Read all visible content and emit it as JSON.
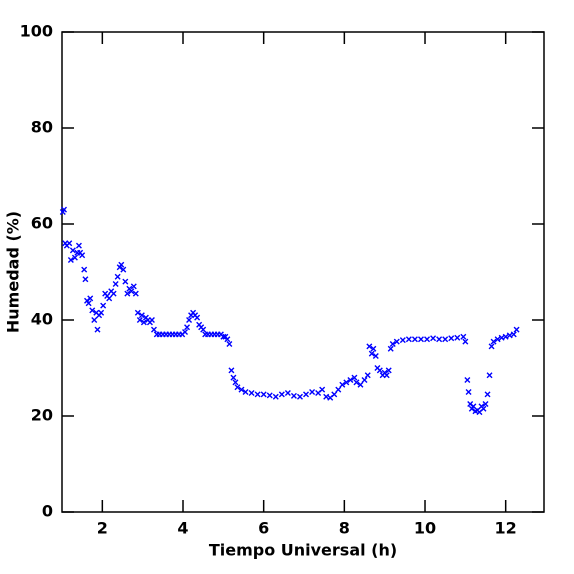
{
  "chart_data": {
    "type": "scatter",
    "xlabel": "Tiempo Universal (h)",
    "ylabel": "Humedad (%)",
    "xlim": [
      1,
      12.95
    ],
    "ylim": [
      0,
      100
    ],
    "xticks": [
      2,
      4,
      6,
      8,
      10,
      12
    ],
    "yticks": [
      0,
      20,
      40,
      60,
      80,
      100
    ],
    "color": "#0000ff",
    "x": [
      1.02,
      1.05,
      1.08,
      1.12,
      1.18,
      1.22,
      1.27,
      1.32,
      1.38,
      1.42,
      1.45,
      1.5,
      1.55,
      1.58,
      1.62,
      1.66,
      1.7,
      1.75,
      1.8,
      1.85,
      1.88,
      1.92,
      1.97,
      2.02,
      2.07,
      2.12,
      2.17,
      2.22,
      2.28,
      2.33,
      2.38,
      2.43,
      2.47,
      2.52,
      2.57,
      2.62,
      2.67,
      2.72,
      2.78,
      2.83,
      2.88,
      2.93,
      2.98,
      3.03,
      3.08,
      3.13,
      3.18,
      3.23,
      3.28,
      3.35,
      3.42,
      3.5,
      3.58,
      3.66,
      3.74,
      3.82,
      3.9,
      3.98,
      4.05,
      4.1,
      4.15,
      4.2,
      4.25,
      4.3,
      4.35,
      4.4,
      4.45,
      4.5,
      4.55,
      4.62,
      4.7,
      4.78,
      4.86,
      4.94,
      5.0,
      5.05,
      5.1,
      5.15,
      5.2,
      5.25,
      5.3,
      5.35,
      5.45,
      5.55,
      5.7,
      5.85,
      6.0,
      6.15,
      6.3,
      6.45,
      6.6,
      6.75,
      6.9,
      7.05,
      7.2,
      7.35,
      7.45,
      7.55,
      7.65,
      7.75,
      7.85,
      7.95,
      8.05,
      8.15,
      8.25,
      8.3,
      8.4,
      8.5,
      8.58,
      8.62,
      8.68,
      8.72,
      8.78,
      8.82,
      8.88,
      8.95,
      9.0,
      9.05,
      9.1,
      9.15,
      9.2,
      9.3,
      9.45,
      9.6,
      9.75,
      9.9,
      10.05,
      10.2,
      10.35,
      10.5,
      10.65,
      10.8,
      10.95,
      11.0,
      11.05,
      11.08,
      11.12,
      11.16,
      11.2,
      11.25,
      11.3,
      11.35,
      11.4,
      11.45,
      11.5,
      11.55,
      11.6,
      11.65,
      11.7,
      11.8,
      11.9,
      12.0,
      12.1,
      12.2,
      12.27
    ],
    "values": [
      62.5,
      63,
      56,
      55.5,
      56,
      52.5,
      54.5,
      53,
      54,
      55.5,
      54,
      53.5,
      50.5,
      48.5,
      44,
      43.5,
      44.5,
      42,
      40,
      41.5,
      38,
      41,
      41.5,
      43,
      45.5,
      45,
      44.5,
      46,
      45.5,
      47.5,
      49,
      51,
      51.5,
      50.5,
      48,
      45.5,
      46.5,
      46,
      47,
      45.5,
      41.5,
      40,
      41,
      39.5,
      40.5,
      40,
      39.5,
      40,
      38,
      37,
      37,
      37,
      37,
      37,
      37,
      37,
      37,
      37,
      37.5,
      38.5,
      40,
      41,
      41.5,
      41,
      40.5,
      39,
      38.5,
      38,
      37,
      37,
      37,
      37,
      37,
      37,
      36.5,
      36.5,
      36,
      35,
      29.5,
      28,
      27,
      26,
      25.5,
      25,
      24.8,
      24.5,
      24.5,
      24.3,
      24,
      24.5,
      24.8,
      24.2,
      24,
      24.5,
      25,
      24.8,
      25.5,
      24,
      23.8,
      24.5,
      25.5,
      26.5,
      27,
      27.5,
      28,
      27,
      26.5,
      27.5,
      28.5,
      34.5,
      33,
      34,
      32.5,
      30,
      29.5,
      28.5,
      29,
      28.5,
      29.5,
      34,
      35,
      35.5,
      35.8,
      36,
      36,
      36,
      36,
      36.2,
      36,
      36,
      36.2,
      36.3,
      36.5,
      35.5,
      27.5,
      25,
      22.5,
      21.5,
      22,
      21,
      21.2,
      20.8,
      22,
      21.5,
      22.5,
      24.5,
      28.5,
      34.5,
      35.5,
      36,
      36.3,
      36.5,
      36.8,
      37,
      38
    ]
  }
}
